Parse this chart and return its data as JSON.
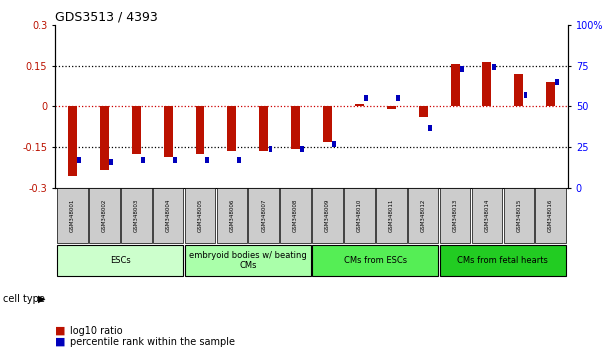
{
  "title": "GDS3513 / 4393",
  "samples": [
    "GSM348001",
    "GSM348002",
    "GSM348003",
    "GSM348004",
    "GSM348005",
    "GSM348006",
    "GSM348007",
    "GSM348008",
    "GSM348009",
    "GSM348010",
    "GSM348011",
    "GSM348012",
    "GSM348013",
    "GSM348014",
    "GSM348015",
    "GSM348016"
  ],
  "log10_ratio": [
    -0.255,
    -0.235,
    -0.175,
    -0.185,
    -0.175,
    -0.165,
    -0.165,
    -0.155,
    -0.13,
    0.01,
    -0.01,
    -0.04,
    0.155,
    0.165,
    0.12,
    0.09
  ],
  "percentile_rank": [
    17,
    16,
    17,
    17,
    17,
    17,
    24,
    24,
    27,
    55,
    55,
    37,
    73,
    74,
    57,
    65
  ],
  "ylim_left": [
    -0.3,
    0.3
  ],
  "ylim_right": [
    0,
    100
  ],
  "yticks_left": [
    -0.3,
    -0.15,
    0,
    0.15,
    0.3
  ],
  "yticks_right": [
    0,
    25,
    50,
    75,
    100
  ],
  "ytick_labels_left": [
    "-0.3",
    "-0.15",
    "0",
    "0.15",
    "0.3"
  ],
  "ytick_labels_right": [
    "0",
    "25",
    "50",
    "75",
    "100%"
  ],
  "cell_type_groups": [
    {
      "label": "ESCs",
      "start": 0,
      "end": 3,
      "color": "#ccffcc"
    },
    {
      "label": "embryoid bodies w/ beating\nCMs",
      "start": 4,
      "end": 7,
      "color": "#aaffaa"
    },
    {
      "label": "CMs from ESCs",
      "start": 8,
      "end": 11,
      "color": "#55ee55"
    },
    {
      "label": "CMs from fetal hearts",
      "start": 12,
      "end": 15,
      "color": "#22cc22"
    }
  ],
  "red_color": "#bb1100",
  "blue_color": "#0000bb",
  "bg_color": "#ffffff",
  "sample_box_color": "#cccccc",
  "hline0_color": "#cc0000",
  "hline_dotted_color": "#000000"
}
